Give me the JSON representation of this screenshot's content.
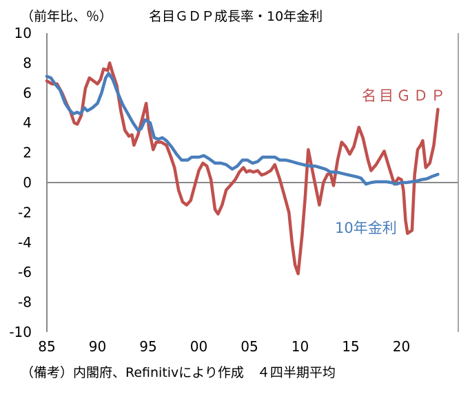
{
  "chart_data": {
    "type": "line",
    "title": "名目ＧＤＰ成長率・10年金利",
    "ylabel": "（前年比、％）",
    "xlabel": "",
    "note": "（備考）内閣府、Refinitivにより作成　４四半期平均",
    "xlim": [
      1985,
      2025.3
    ],
    "ylim": [
      -10,
      10
    ],
    "x_ticks": [
      1985,
      1990,
      1995,
      2000,
      2005,
      2010,
      2015,
      2020
    ],
    "x_tick_labels": [
      "85",
      "90",
      "95",
      "00",
      "05",
      "10",
      "15",
      "20"
    ],
    "y_ticks": [
      10,
      8,
      6,
      4,
      2,
      0,
      -2,
      -4,
      -6,
      -8,
      -10
    ],
    "y_tick_labels": [
      "10",
      "8",
      "6",
      "4",
      "2",
      "0",
      "-2",
      "-4",
      "-6",
      "-8",
      "-10"
    ],
    "grid": false,
    "series": [
      {
        "name": "名目ＧＤＰ",
        "color": "#c0504d",
        "points": [
          [
            1985.0,
            6.8
          ],
          [
            1985.5,
            6.6
          ],
          [
            1986.0,
            6.6
          ],
          [
            1986.5,
            6.0
          ],
          [
            1987.0,
            5.2
          ],
          [
            1987.3,
            4.8
          ],
          [
            1987.7,
            4.0
          ],
          [
            1988.0,
            3.9
          ],
          [
            1988.4,
            4.5
          ],
          [
            1988.8,
            6.3
          ],
          [
            1989.2,
            7.0
          ],
          [
            1989.6,
            6.8
          ],
          [
            1990.0,
            6.6
          ],
          [
            1990.3,
            6.9
          ],
          [
            1990.6,
            7.6
          ],
          [
            1991.0,
            7.5
          ],
          [
            1991.2,
            8.0
          ],
          [
            1991.5,
            7.3
          ],
          [
            1991.9,
            6.5
          ],
          [
            1992.3,
            4.8
          ],
          [
            1992.7,
            3.5
          ],
          [
            1993.1,
            3.1
          ],
          [
            1993.4,
            3.2
          ],
          [
            1993.6,
            2.5
          ],
          [
            1994.0,
            3.2
          ],
          [
            1994.5,
            4.5
          ],
          [
            1994.8,
            5.3
          ],
          [
            1995.1,
            3.5
          ],
          [
            1995.5,
            2.2
          ],
          [
            1995.8,
            2.7
          ],
          [
            1996.3,
            2.7
          ],
          [
            1996.8,
            2.5
          ],
          [
            1997.2,
            1.8
          ],
          [
            1997.6,
            1.0
          ],
          [
            1998.0,
            -0.5
          ],
          [
            1998.4,
            -1.3
          ],
          [
            1998.8,
            -1.5
          ],
          [
            1999.2,
            -1.2
          ],
          [
            1999.6,
            -0.2
          ],
          [
            2000.0,
            0.8
          ],
          [
            2000.4,
            1.3
          ],
          [
            2000.8,
            1.1
          ],
          [
            2001.2,
            0.2
          ],
          [
            2001.6,
            -1.8
          ],
          [
            2001.9,
            -2.1
          ],
          [
            2002.3,
            -1.5
          ],
          [
            2002.7,
            -0.5
          ],
          [
            2003.1,
            -0.2
          ],
          [
            2003.6,
            0.2
          ],
          [
            2004.0,
            0.7
          ],
          [
            2004.4,
            1.0
          ],
          [
            2004.7,
            0.7
          ],
          [
            2005.0,
            0.8
          ],
          [
            2005.4,
            0.7
          ],
          [
            2005.8,
            0.8
          ],
          [
            2006.2,
            0.5
          ],
          [
            2006.6,
            0.6
          ],
          [
            2007.1,
            0.8
          ],
          [
            2007.5,
            1.2
          ],
          [
            2008.0,
            0.2
          ],
          [
            2008.5,
            -1.0
          ],
          [
            2008.9,
            -2.0
          ],
          [
            2009.2,
            -4.0
          ],
          [
            2009.5,
            -5.5
          ],
          [
            2009.8,
            -6.1
          ],
          [
            2010.2,
            -3.5
          ],
          [
            2010.5,
            -1.0
          ],
          [
            2010.8,
            2.2
          ],
          [
            2011.3,
            0.5
          ],
          [
            2011.9,
            -1.5
          ],
          [
            2012.3,
            0.0
          ],
          [
            2012.7,
            0.55
          ],
          [
            2013.0,
            0.6
          ],
          [
            2013.3,
            -0.2
          ],
          [
            2013.7,
            1.5
          ],
          [
            2014.1,
            2.7
          ],
          [
            2014.5,
            2.4
          ],
          [
            2014.9,
            1.9
          ],
          [
            2015.3,
            2.4
          ],
          [
            2015.8,
            3.7
          ],
          [
            2016.2,
            3.0
          ],
          [
            2016.7,
            1.5
          ],
          [
            2017.0,
            0.8
          ],
          [
            2017.5,
            1.2
          ],
          [
            2018.3,
            2.1
          ],
          [
            2018.7,
            1.2
          ],
          [
            2019.3,
            -0.1
          ],
          [
            2019.7,
            0.3
          ],
          [
            2020.0,
            0.2
          ],
          [
            2020.2,
            -0.5
          ],
          [
            2020.4,
            -2.5
          ],
          [
            2020.6,
            -3.4
          ],
          [
            2021.05,
            -3.2
          ],
          [
            2021.3,
            0.5
          ],
          [
            2021.6,
            2.2
          ],
          [
            2021.9,
            2.5
          ],
          [
            2022.1,
            2.8
          ],
          [
            2022.4,
            1.0
          ],
          [
            2022.8,
            1.3
          ],
          [
            2023.2,
            2.5
          ],
          [
            2023.6,
            4.9
          ]
        ]
      },
      {
        "name": "10年金利",
        "color": "#4a7ebb",
        "points": [
          [
            1985.0,
            7.1
          ],
          [
            1985.4,
            7.0
          ],
          [
            1985.8,
            6.6
          ],
          [
            1986.3,
            6.2
          ],
          [
            1986.8,
            5.3
          ],
          [
            1987.2,
            4.9
          ],
          [
            1987.6,
            4.6
          ],
          [
            1988.0,
            4.7
          ],
          [
            1988.3,
            4.6
          ],
          [
            1988.7,
            5.0
          ],
          [
            1989.0,
            4.8
          ],
          [
            1989.5,
            5.0
          ],
          [
            1990.0,
            5.3
          ],
          [
            1990.4,
            6.0
          ],
          [
            1990.8,
            7.0
          ],
          [
            1991.1,
            7.3
          ],
          [
            1991.5,
            6.9
          ],
          [
            1992.0,
            6.0
          ],
          [
            1992.5,
            5.2
          ],
          [
            1993.0,
            4.6
          ],
          [
            1993.5,
            4.0
          ],
          [
            1994.0,
            3.5
          ],
          [
            1994.3,
            3.6
          ],
          [
            1994.7,
            4.2
          ],
          [
            1995.2,
            4.0
          ],
          [
            1995.6,
            3.0
          ],
          [
            1996.0,
            2.9
          ],
          [
            1996.4,
            3.0
          ],
          [
            1996.8,
            2.8
          ],
          [
            1997.3,
            2.4
          ],
          [
            1997.8,
            1.9
          ],
          [
            1998.3,
            1.5
          ],
          [
            1998.9,
            1.5
          ],
          [
            1999.3,
            1.7
          ],
          [
            2000.0,
            1.7
          ],
          [
            2000.5,
            1.8
          ],
          [
            2001.0,
            1.6
          ],
          [
            2001.6,
            1.3
          ],
          [
            2002.2,
            1.3
          ],
          [
            2002.7,
            1.2
          ],
          [
            2003.3,
            0.9
          ],
          [
            2003.8,
            1.1
          ],
          [
            2004.3,
            1.5
          ],
          [
            2004.8,
            1.5
          ],
          [
            2005.3,
            1.3
          ],
          [
            2005.8,
            1.4
          ],
          [
            2006.3,
            1.7
          ],
          [
            2006.8,
            1.7
          ],
          [
            2007.5,
            1.7
          ],
          [
            2008.0,
            1.5
          ],
          [
            2008.6,
            1.5
          ],
          [
            2009.2,
            1.4
          ],
          [
            2009.7,
            1.3
          ],
          [
            2010.3,
            1.2
          ],
          [
            2011.0,
            1.1
          ],
          [
            2011.5,
            1.1
          ],
          [
            2012.0,
            1.0
          ],
          [
            2012.5,
            0.9
          ],
          [
            2013.0,
            0.7
          ],
          [
            2013.6,
            0.7
          ],
          [
            2014.2,
            0.6
          ],
          [
            2014.8,
            0.5
          ],
          [
            2015.5,
            0.4
          ],
          [
            2016.0,
            0.3
          ],
          [
            2016.5,
            -0.1
          ],
          [
            2017.0,
            0.0
          ],
          [
            2017.5,
            0.05
          ],
          [
            2018.0,
            0.05
          ],
          [
            2018.5,
            0.05
          ],
          [
            2019.0,
            0.0
          ],
          [
            2019.5,
            -0.1
          ],
          [
            2020.0,
            0.0
          ],
          [
            2020.5,
            0.0
          ],
          [
            2021.0,
            0.05
          ],
          [
            2021.5,
            0.1
          ],
          [
            2022.0,
            0.2
          ],
          [
            2022.5,
            0.25
          ],
          [
            2023.0,
            0.4
          ],
          [
            2023.6,
            0.55
          ]
        ]
      }
    ]
  }
}
